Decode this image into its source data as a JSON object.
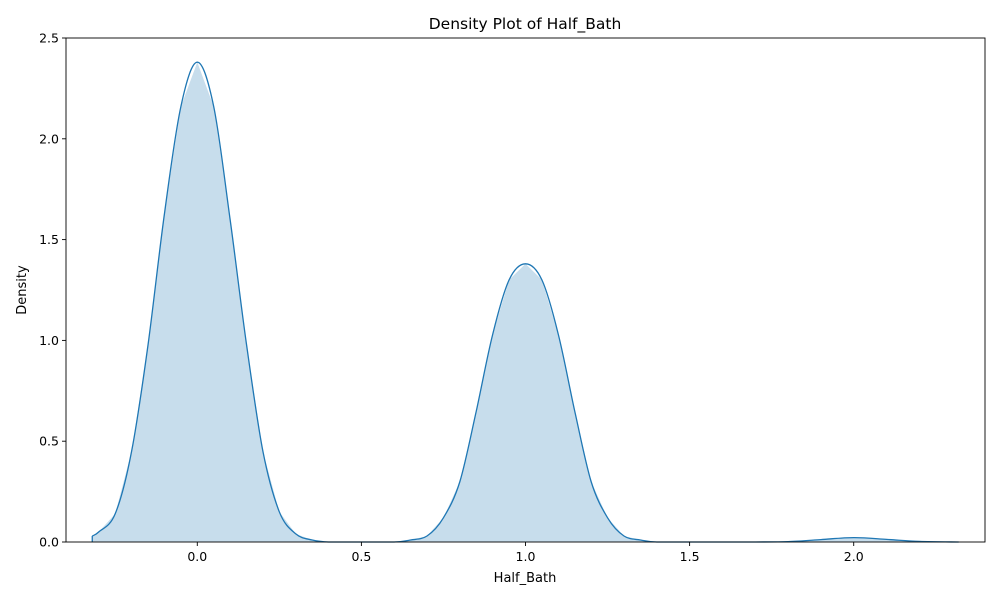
{
  "chart_data": {
    "type": "area",
    "title": "Density Plot of Half_Bath",
    "xlabel": "Half_Bath",
    "ylabel": "Density",
    "xlim": [
      -0.4,
      2.4
    ],
    "ylim": [
      0,
      2.5
    ],
    "xticks": [
      0.0,
      0.5,
      1.0,
      1.5,
      2.0
    ],
    "xtick_labels": [
      "0.0",
      "0.5",
      "1.0",
      "1.5",
      "2.0"
    ],
    "yticks": [
      0.0,
      0.5,
      1.0,
      1.5,
      2.0,
      2.5
    ],
    "ytick_labels": [
      "0.0",
      "0.5",
      "1.0",
      "1.5",
      "2.0",
      "2.5"
    ],
    "grid": false,
    "series": [
      {
        "line_color": "#1f77b4",
        "fill_color": "#1f77b4",
        "fill_alpha": 0.25,
        "x": [
          -0.32,
          -0.3,
          -0.25,
          -0.2,
          -0.15,
          -0.1,
          -0.05,
          0.0,
          0.05,
          0.1,
          0.15,
          0.2,
          0.25,
          0.3,
          0.35,
          0.4,
          0.5,
          0.6,
          0.65,
          0.7,
          0.75,
          0.8,
          0.85,
          0.9,
          0.95,
          1.0,
          1.05,
          1.1,
          1.15,
          1.2,
          1.25,
          1.3,
          1.35,
          1.4,
          1.5,
          1.6,
          1.7,
          1.8,
          1.9,
          2.0,
          2.1,
          2.2,
          2.32
        ],
        "y": [
          0.03,
          0.05,
          0.14,
          0.45,
          0.98,
          1.63,
          2.16,
          2.38,
          2.16,
          1.6,
          0.98,
          0.45,
          0.15,
          0.04,
          0.01,
          0.0,
          0.0,
          0.0,
          0.01,
          0.03,
          0.12,
          0.3,
          0.65,
          1.03,
          1.3,
          1.38,
          1.3,
          1.03,
          0.65,
          0.3,
          0.12,
          0.03,
          0.01,
          0.0,
          0.0,
          0.0,
          0.0,
          0.002,
          0.012,
          0.022,
          0.013,
          0.003,
          0.0
        ]
      }
    ]
  }
}
